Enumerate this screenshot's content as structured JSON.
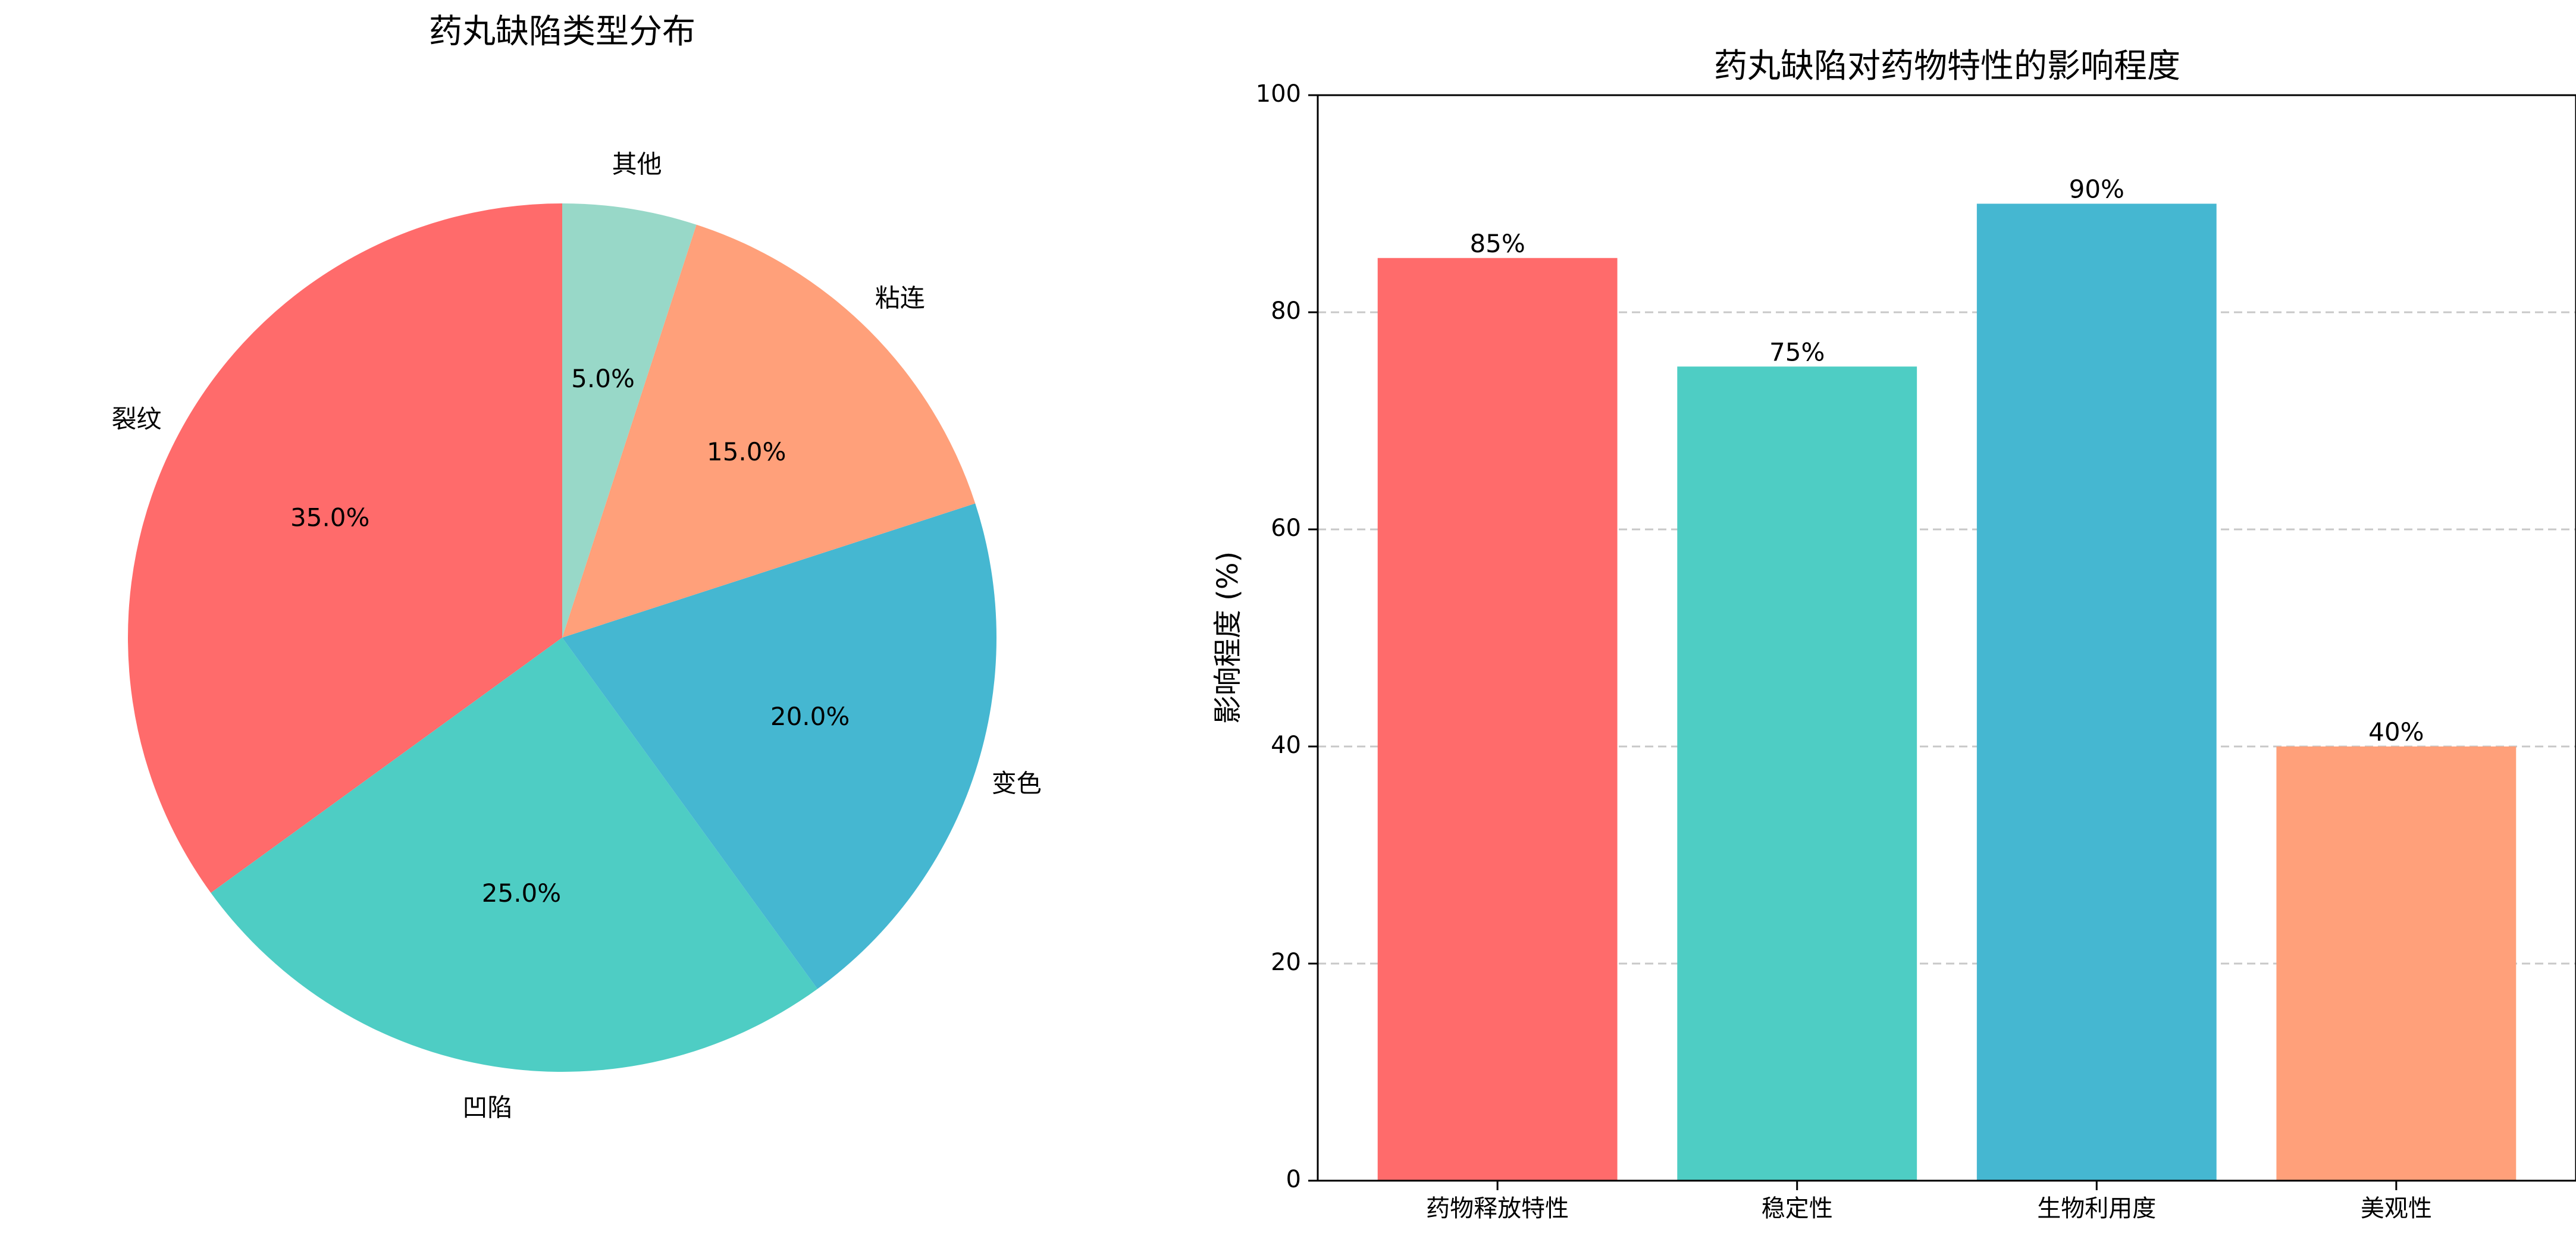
{
  "chart_data": [
    {
      "type": "pie",
      "title": "药丸缺陷类型分布",
      "labels": [
        "裂纹",
        "凹陷",
        "变色",
        "粘连",
        "其他"
      ],
      "values": [
        35,
        25,
        20,
        15,
        5
      ],
      "percent_labels": [
        "35.0%",
        "25.0%",
        "20.0%",
        "15.0%",
        "5.0%"
      ],
      "colors": [
        "#FF6B6B",
        "#4ECDC4",
        "#45B7D1",
        "#FFA07A",
        "#98D8C8"
      ],
      "start_angle_deg": 90,
      "direction": "counterclockwise"
    },
    {
      "type": "bar",
      "title": "药丸缺陷对药物特性的影响程度",
      "categories": [
        "药物释放特性",
        "稳定性",
        "生物利用度",
        "美观性"
      ],
      "values": [
        85,
        75,
        90,
        40
      ],
      "value_labels": [
        "85%",
        "75%",
        "90%",
        "40%"
      ],
      "colors": [
        "#FF6B6B",
        "#4ECDC4",
        "#45B7D1",
        "#FFA07A"
      ],
      "xlabel": "",
      "ylabel": "影响程度 (%)",
      "ylim": [
        0,
        100
      ],
      "yticks": [
        0,
        20,
        40,
        60,
        80,
        100
      ],
      "grid": "y-dashed"
    }
  ]
}
